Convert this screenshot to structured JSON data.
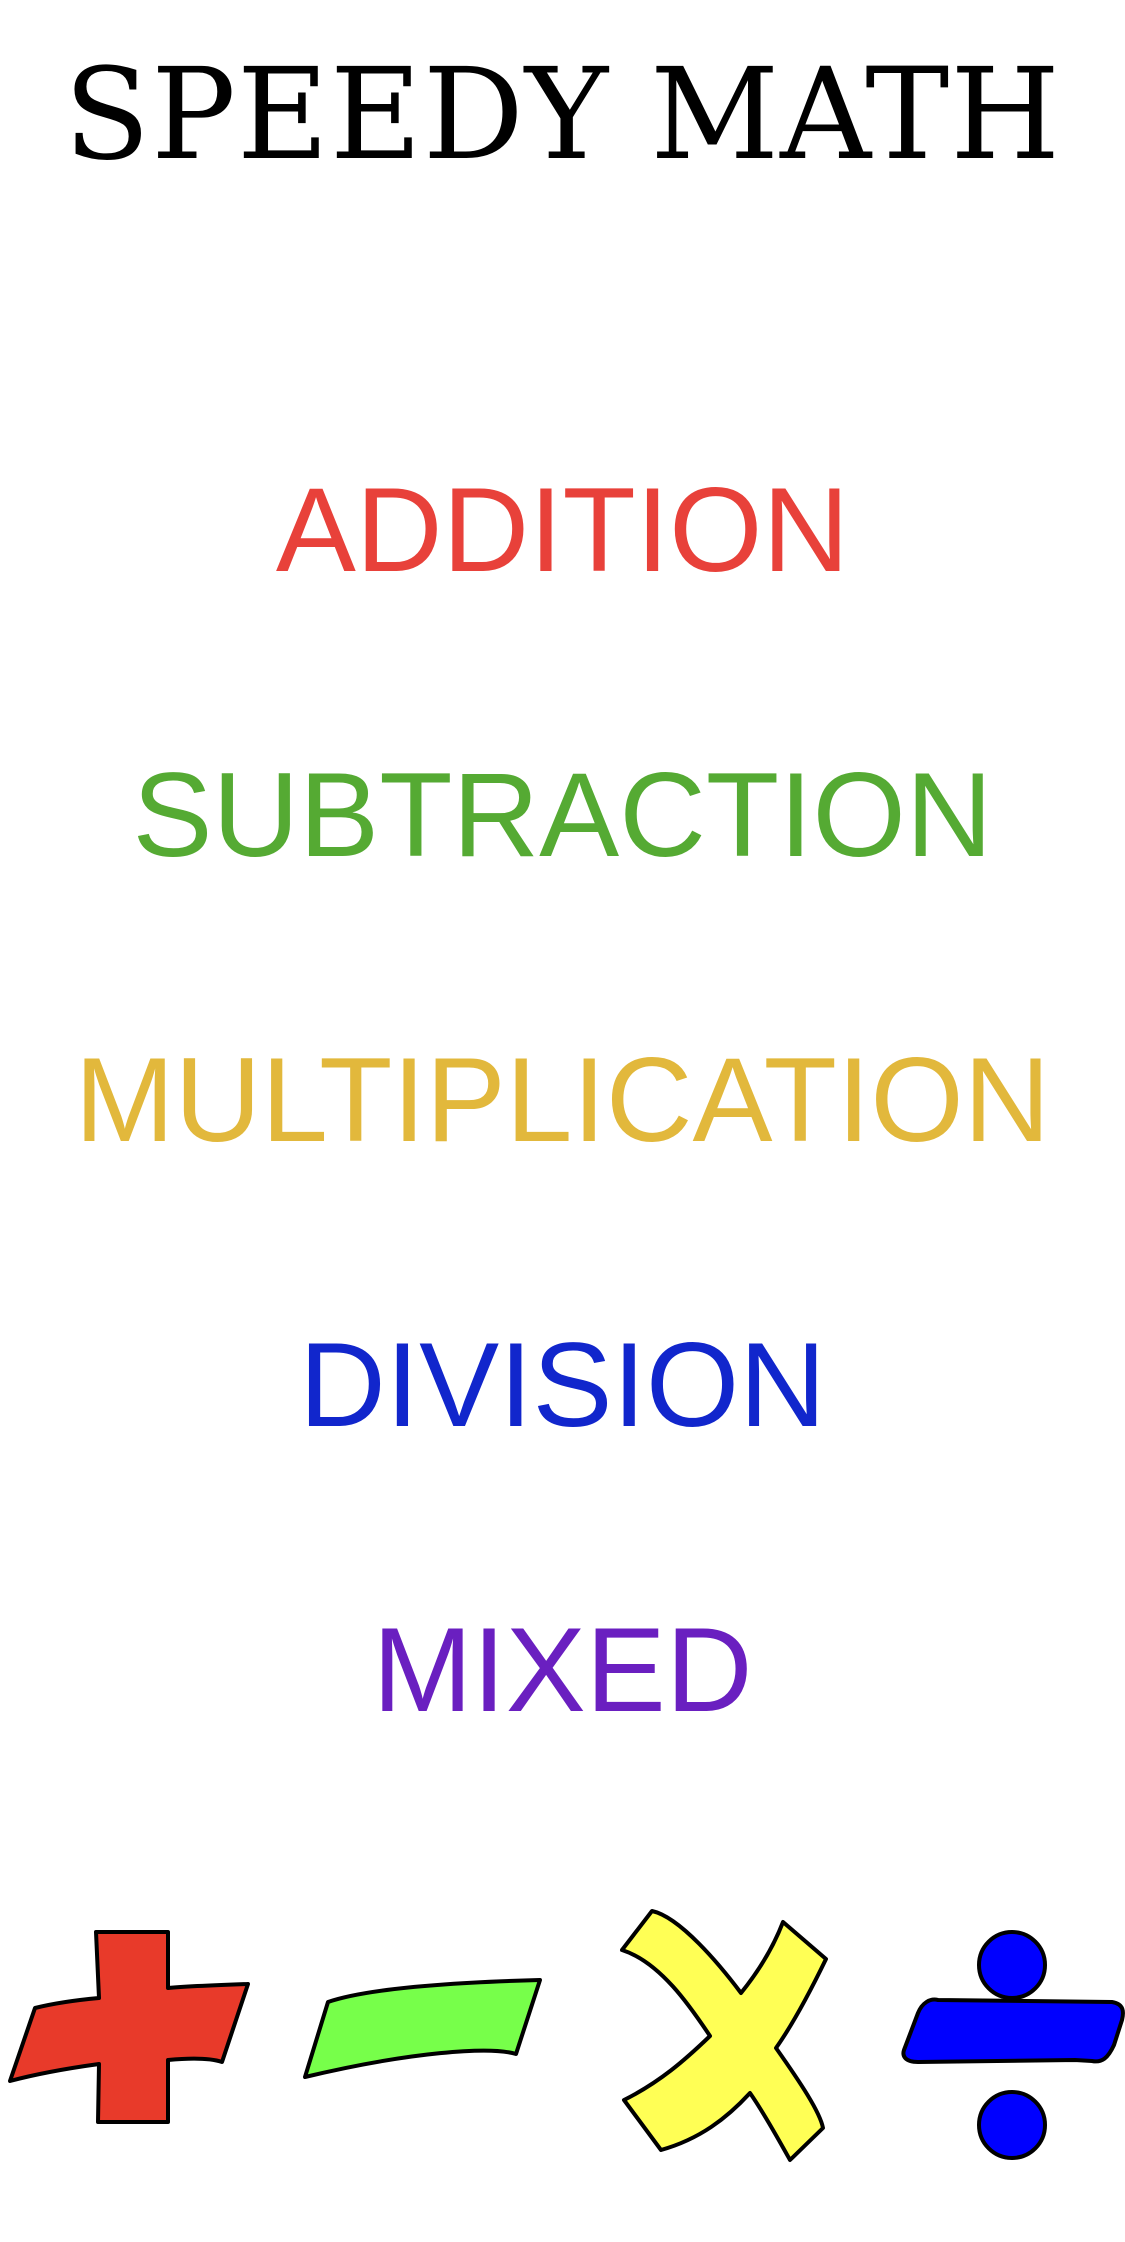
{
  "app": {
    "title": "SPEEDY MATH"
  },
  "menu": {
    "items": [
      {
        "label": "ADDITION",
        "color": "#e8413a"
      },
      {
        "label": "SUBTRACTION",
        "color": "#55aa33"
      },
      {
        "label": "MULTIPLICATION",
        "color": "#e2b83c"
      },
      {
        "label": "DIVISION",
        "color": "#1126cc"
      },
      {
        "label": "MIXED",
        "color": "#6a1fc0"
      }
    ]
  },
  "icons": [
    {
      "name": "plus-icon",
      "color": "#e83a2a"
    },
    {
      "name": "minus-icon",
      "color": "#77ff4a"
    },
    {
      "name": "multiply-icon",
      "color": "#ffff55"
    },
    {
      "name": "divide-icon",
      "color": "#0000ff"
    }
  ]
}
